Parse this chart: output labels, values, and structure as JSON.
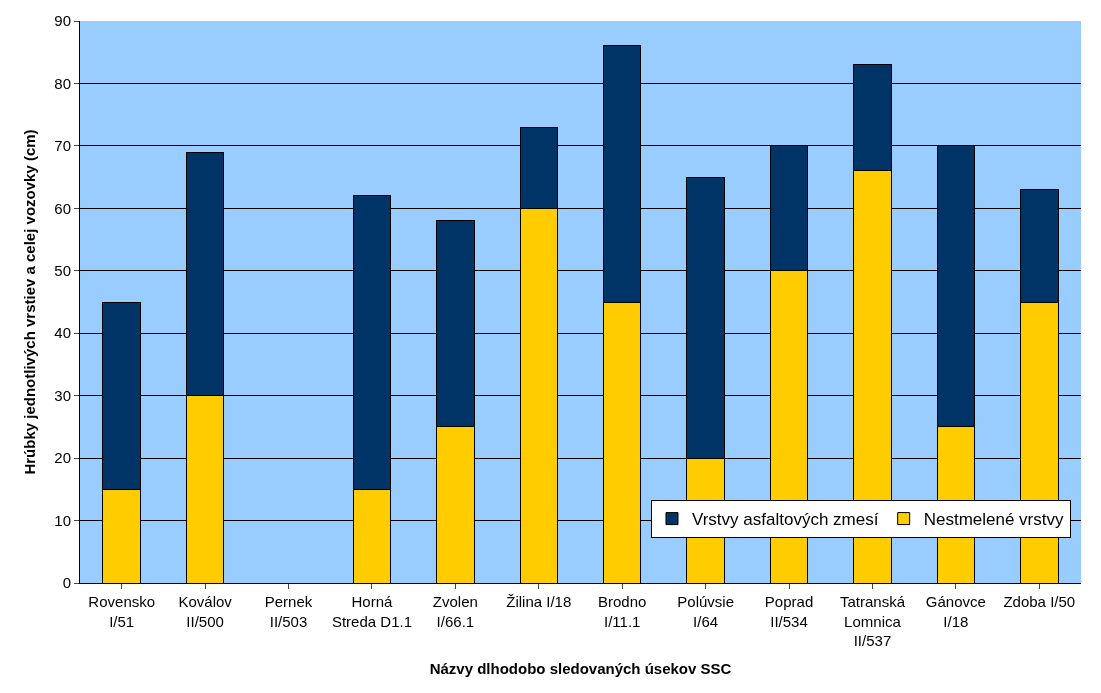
{
  "chart_data": {
    "type": "bar",
    "stacked": true,
    "xlabel": "Názvy dlhodobo sledovaných úsekov SSC",
    "ylabel": "Hrúbky jednotlivých vrstiev a celej vozovky (cm)",
    "categories": [
      "Rovensko I/51",
      "Koválov II/500",
      "Pernek II/503",
      "Horná Streda D1.1",
      "Zvolen I/66.1",
      "Žilina I/18",
      "Brodno I/11.1",
      "Polúvsie I/64",
      "Poprad II/534",
      "Tatranská Lomnica II/537",
      "Gánovce I/18",
      "Zdoba I/50"
    ],
    "series": [
      {
        "name": "Nestmelené vrstvy",
        "color": "#ffcc00",
        "values": [
          15,
          30,
          null,
          15,
          25,
          60,
          45,
          20,
          50,
          66,
          25,
          45
        ]
      },
      {
        "name": "Vrstvy asfaltových zmesí",
        "color": "#003366",
        "values": [
          30,
          39,
          null,
          47,
          33,
          13,
          41,
          45,
          20,
          17,
          45,
          18
        ]
      }
    ],
    "ylim": [
      0,
      90
    ],
    "yticks": [
      0,
      10,
      20,
      30,
      40,
      50,
      60,
      70,
      80,
      90
    ],
    "grid": "y",
    "legend": "bottom right"
  }
}
